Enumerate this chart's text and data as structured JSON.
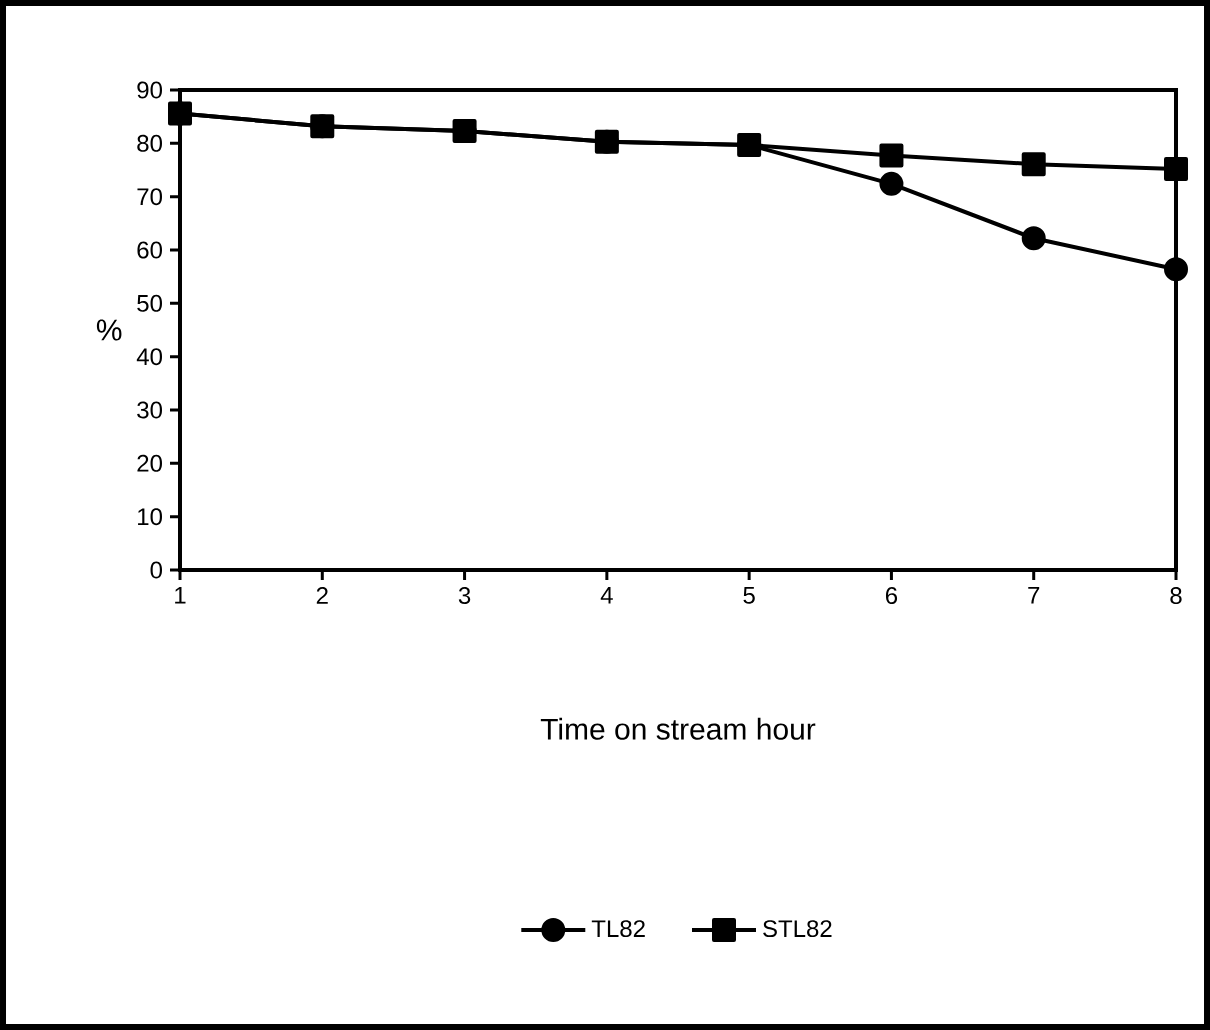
{
  "chart_data": {
    "type": "line",
    "xlabel": "Time on stream hour",
    "ylabel": "%",
    "x": [
      1,
      2,
      3,
      4,
      5,
      6,
      7,
      8
    ],
    "series": [
      {
        "name": "TL82",
        "color": "#000000",
        "marker": "circle",
        "values": [
          85.6,
          83.2,
          82.3,
          80.3,
          79.7,
          72.4,
          62.2,
          56.4
        ]
      },
      {
        "name": "STL82",
        "color": "#000000",
        "marker": "square",
        "values": [
          85.6,
          83.2,
          82.3,
          80.3,
          79.7,
          77.7,
          76.1,
          75.2
        ]
      }
    ],
    "xlim": [
      1,
      8
    ],
    "xticks": [
      1,
      2,
      3,
      4,
      5,
      6,
      7,
      8
    ],
    "ylim": [
      0,
      90
    ],
    "yticks": [
      0,
      10,
      20,
      30,
      40,
      50,
      60,
      70,
      80,
      90
    ],
    "grid": false,
    "legend": "bottom"
  }
}
